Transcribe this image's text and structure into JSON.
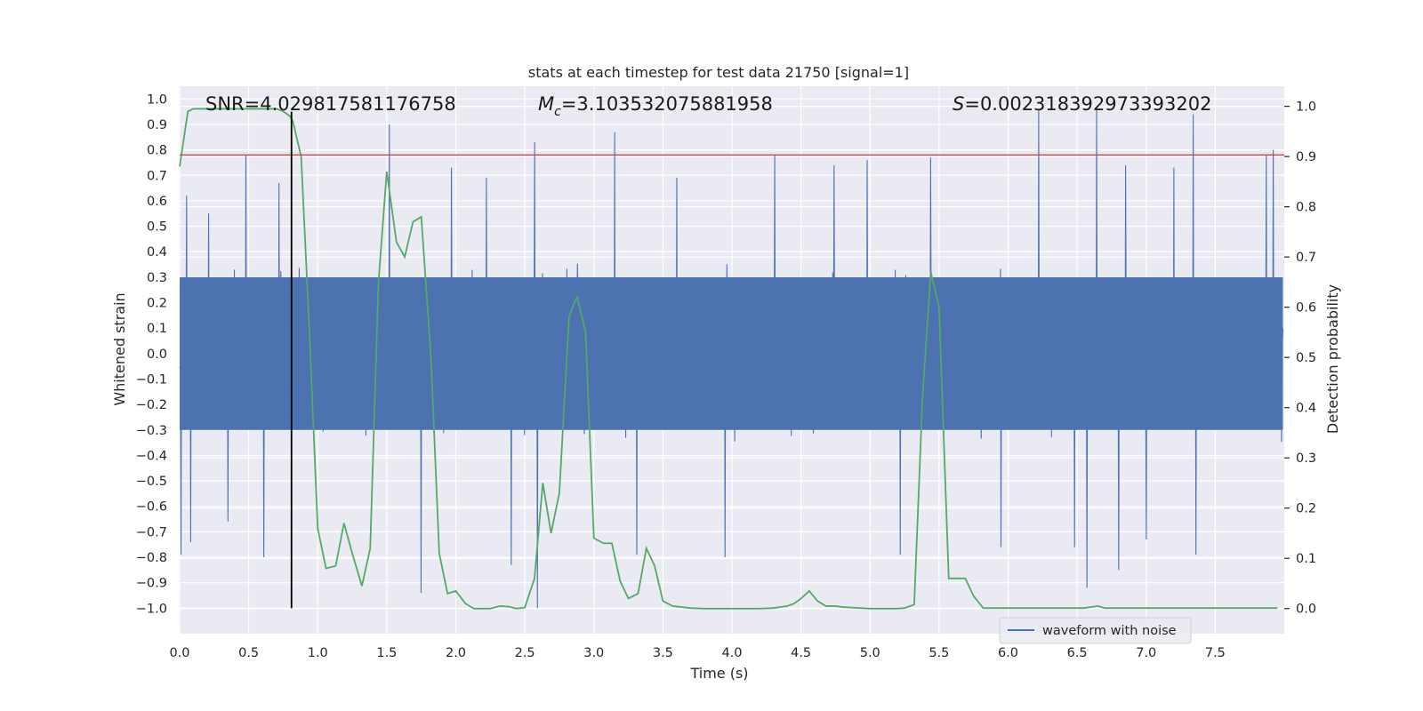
{
  "chart_data": {
    "type": "line",
    "title": "stats at each timestep for test data 21750 [signal=1]",
    "xlabel": "Time (s)",
    "ylabel": "Whitened strain",
    "y2label": "Detection probability",
    "xlim": [
      0.0,
      8.0
    ],
    "ylim": [
      -1.1,
      1.05
    ],
    "y2lim": [
      -0.05,
      1.04
    ],
    "x_ticks": [
      0.0,
      0.5,
      1.0,
      1.5,
      2.0,
      2.5,
      3.0,
      3.5,
      4.0,
      4.5,
      5.0,
      5.5,
      6.0,
      6.5,
      7.0,
      7.5
    ],
    "x_tick_labels": [
      "0.0",
      "0.5",
      "1.0",
      "1.5",
      "2.0",
      "2.5",
      "3.0",
      "3.5",
      "4.0",
      "4.5",
      "5.0",
      "5.5",
      "6.0",
      "6.5",
      "7.0",
      "7.5"
    ],
    "y_ticks": [
      1.0,
      0.9,
      0.8,
      0.7,
      0.6,
      0.5,
      0.4,
      0.3,
      0.2,
      0.1,
      0.0,
      -0.1,
      -0.2,
      -0.3,
      -0.4,
      -0.5,
      -0.6,
      -0.7,
      -0.8,
      -0.9,
      -1.0
    ],
    "y_tick_labels": [
      "1.0",
      "0.9",
      "0.8",
      "0.7",
      "0.6",
      "0.5",
      "0.4",
      "0.3",
      "0.2",
      "0.1",
      "0.0",
      "−0.1",
      "−0.2",
      "−0.3",
      "−0.4",
      "−0.5",
      "−0.6",
      "−0.7",
      "−0.8",
      "−0.9",
      "−1.0"
    ],
    "y2_ticks": [
      1.0,
      0.9,
      0.8,
      0.7,
      0.6,
      0.5,
      0.4,
      0.3,
      0.2,
      0.1,
      0.0
    ],
    "y2_tick_labels": [
      "1.0",
      "0.9",
      "0.8",
      "0.7",
      "0.6",
      "0.5",
      "0.4",
      "0.3",
      "0.2",
      "0.1",
      "0.0"
    ],
    "annotations": {
      "snr": "SNR=4.029817581176758",
      "mc_symbol": "M",
      "mc_subscript": "c",
      "mc_value": "=3.103532075881958",
      "s_symbol": "S",
      "s_value": "=0.002318392973393202"
    },
    "legend": {
      "label": "waveform with noise",
      "location": "lower right"
    },
    "threshold_line": {
      "y": 0.78,
      "color": "#c44e52"
    },
    "event_marker": {
      "x": 0.81,
      "y_from": -1.0,
      "y_to": 0.95,
      "color": "#000000"
    },
    "waveform": {
      "name": "waveform with noise",
      "color": "#4c72b0",
      "envelope": "approximately ±0.3 dense noise band",
      "spikes": [
        {
          "x": 0.01,
          "y": -0.79
        },
        {
          "x": 0.05,
          "y": 0.62
        },
        {
          "x": 0.08,
          "y": -0.74
        },
        {
          "x": 0.21,
          "y": 0.55
        },
        {
          "x": 0.35,
          "y": -0.66
        },
        {
          "x": 0.48,
          "y": 0.78
        },
        {
          "x": 0.61,
          "y": -0.8
        },
        {
          "x": 0.72,
          "y": 0.67
        },
        {
          "x": 1.52,
          "y": 0.9
        },
        {
          "x": 1.75,
          "y": -0.94
        },
        {
          "x": 1.97,
          "y": 0.73
        },
        {
          "x": 2.22,
          "y": 0.69
        },
        {
          "x": 2.4,
          "y": -0.83
        },
        {
          "x": 2.57,
          "y": 0.83
        },
        {
          "x": 2.59,
          "y": -1.0
        },
        {
          "x": 3.15,
          "y": 0.87
        },
        {
          "x": 3.31,
          "y": -0.79
        },
        {
          "x": 3.6,
          "y": 0.69
        },
        {
          "x": 3.95,
          "y": -0.8
        },
        {
          "x": 4.31,
          "y": 0.78
        },
        {
          "x": 4.74,
          "y": 0.74
        },
        {
          "x": 4.98,
          "y": 0.76
        },
        {
          "x": 5.22,
          "y": -0.79
        },
        {
          "x": 5.44,
          "y": 0.77
        },
        {
          "x": 5.95,
          "y": -0.76
        },
        {
          "x": 6.22,
          "y": 0.96
        },
        {
          "x": 6.48,
          "y": -0.76
        },
        {
          "x": 6.57,
          "y": -0.92
        },
        {
          "x": 6.64,
          "y": 0.96
        },
        {
          "x": 6.8,
          "y": -0.85
        },
        {
          "x": 6.85,
          "y": 0.74
        },
        {
          "x": 7.0,
          "y": -0.73
        },
        {
          "x": 7.2,
          "y": 0.73
        },
        {
          "x": 7.34,
          "y": 0.94
        },
        {
          "x": 7.36,
          "y": -0.79
        },
        {
          "x": 7.87,
          "y": 0.78
        },
        {
          "x": 7.92,
          "y": 0.8
        }
      ]
    },
    "probability": {
      "name": "detection probability",
      "color": "#55a868",
      "x": [
        0.0,
        0.06,
        0.1,
        0.2,
        0.3,
        0.4,
        0.5,
        0.6,
        0.7,
        0.75,
        0.8,
        0.82,
        0.88,
        0.94,
        1.0,
        1.06,
        1.13,
        1.19,
        1.25,
        1.32,
        1.38,
        1.44,
        1.5,
        1.53,
        1.57,
        1.63,
        1.69,
        1.75,
        1.82,
        1.88,
        1.94,
        2.0,
        2.07,
        2.13,
        2.19,
        2.25,
        2.32,
        2.38,
        2.44,
        2.5,
        2.57,
        2.63,
        2.69,
        2.75,
        2.82,
        2.86,
        2.88,
        2.94,
        3.0,
        3.07,
        3.13,
        3.19,
        3.25,
        3.32,
        3.38,
        3.44,
        3.5,
        3.57,
        3.7,
        3.8,
        4.0,
        4.2,
        4.3,
        4.4,
        4.45,
        4.5,
        4.56,
        4.62,
        4.68,
        4.75,
        4.8,
        5.0,
        5.2,
        5.25,
        5.32,
        5.38,
        5.44,
        5.5,
        5.57,
        5.63,
        5.69,
        5.75,
        5.82,
        6.0,
        6.2,
        6.4,
        6.55,
        6.65,
        6.7,
        6.8,
        7.0,
        7.2,
        7.5,
        7.8,
        7.95
      ],
      "y": [
        0.88,
        0.99,
        0.995,
        0.995,
        0.995,
        0.995,
        0.995,
        0.995,
        0.995,
        0.99,
        0.98,
        0.97,
        0.9,
        0.55,
        0.16,
        0.08,
        0.085,
        0.17,
        0.11,
        0.045,
        0.12,
        0.65,
        0.87,
        0.81,
        0.73,
        0.7,
        0.77,
        0.78,
        0.5,
        0.11,
        0.03,
        0.035,
        0.01,
        0.0,
        0.0,
        0.0,
        0.005,
        0.004,
        0.0,
        0.002,
        0.06,
        0.25,
        0.15,
        0.23,
        0.58,
        0.61,
        0.62,
        0.55,
        0.14,
        0.13,
        0.13,
        0.055,
        0.02,
        0.03,
        0.12,
        0.085,
        0.015,
        0.005,
        0.001,
        0.0,
        0.0,
        0.0,
        0.001,
        0.005,
        0.01,
        0.02,
        0.035,
        0.015,
        0.005,
        0.005,
        0.003,
        0.0,
        0.0,
        0.001,
        0.008,
        0.42,
        0.67,
        0.6,
        0.06,
        0.06,
        0.06,
        0.025,
        0.001,
        0.001,
        0.001,
        0.001,
        0.001,
        0.005,
        0.001,
        0.001,
        0.001,
        0.001,
        0.001,
        0.001,
        0.001
      ]
    }
  }
}
